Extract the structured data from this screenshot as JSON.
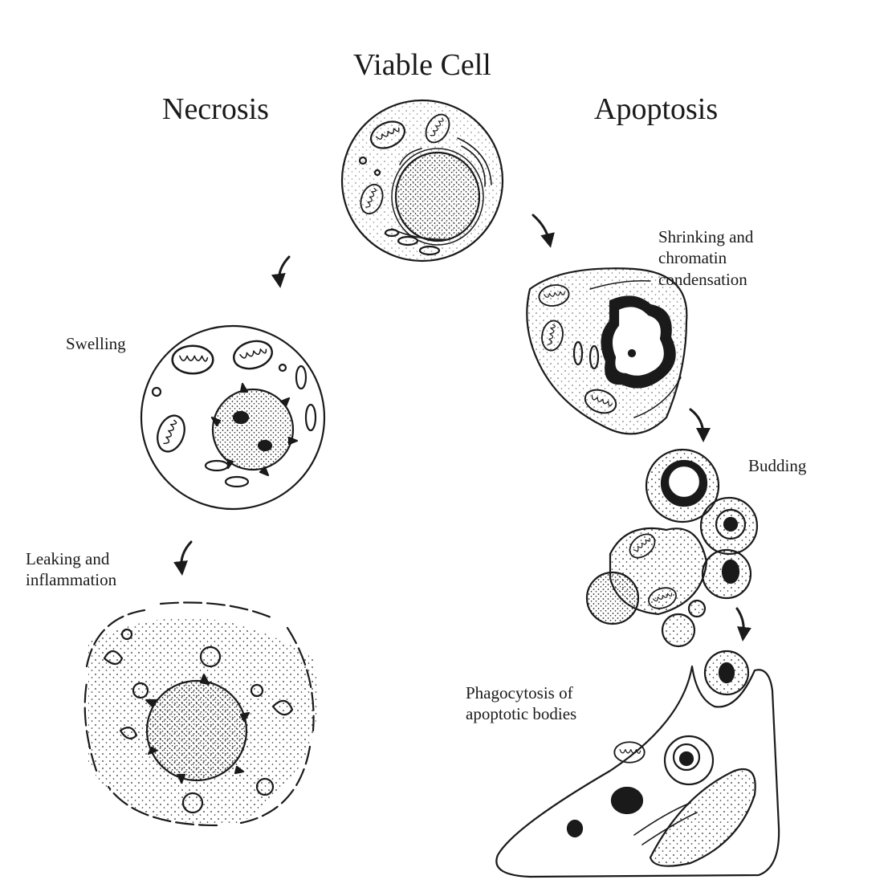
{
  "labels": {
    "viable_cell": "Viable Cell",
    "necrosis": "Necrosis",
    "apoptosis": "Apoptosis",
    "swelling": "Swelling",
    "leaking": "Leaking and\ninflammation",
    "shrinking": "Shrinking and\nchromatin\n      condensation",
    "budding": "Budding",
    "phagocytosis": "Phagocytosis of\napoptotic bodies"
  },
  "colors": {
    "ink": "#1a1a1a",
    "background": "#ffffff"
  }
}
